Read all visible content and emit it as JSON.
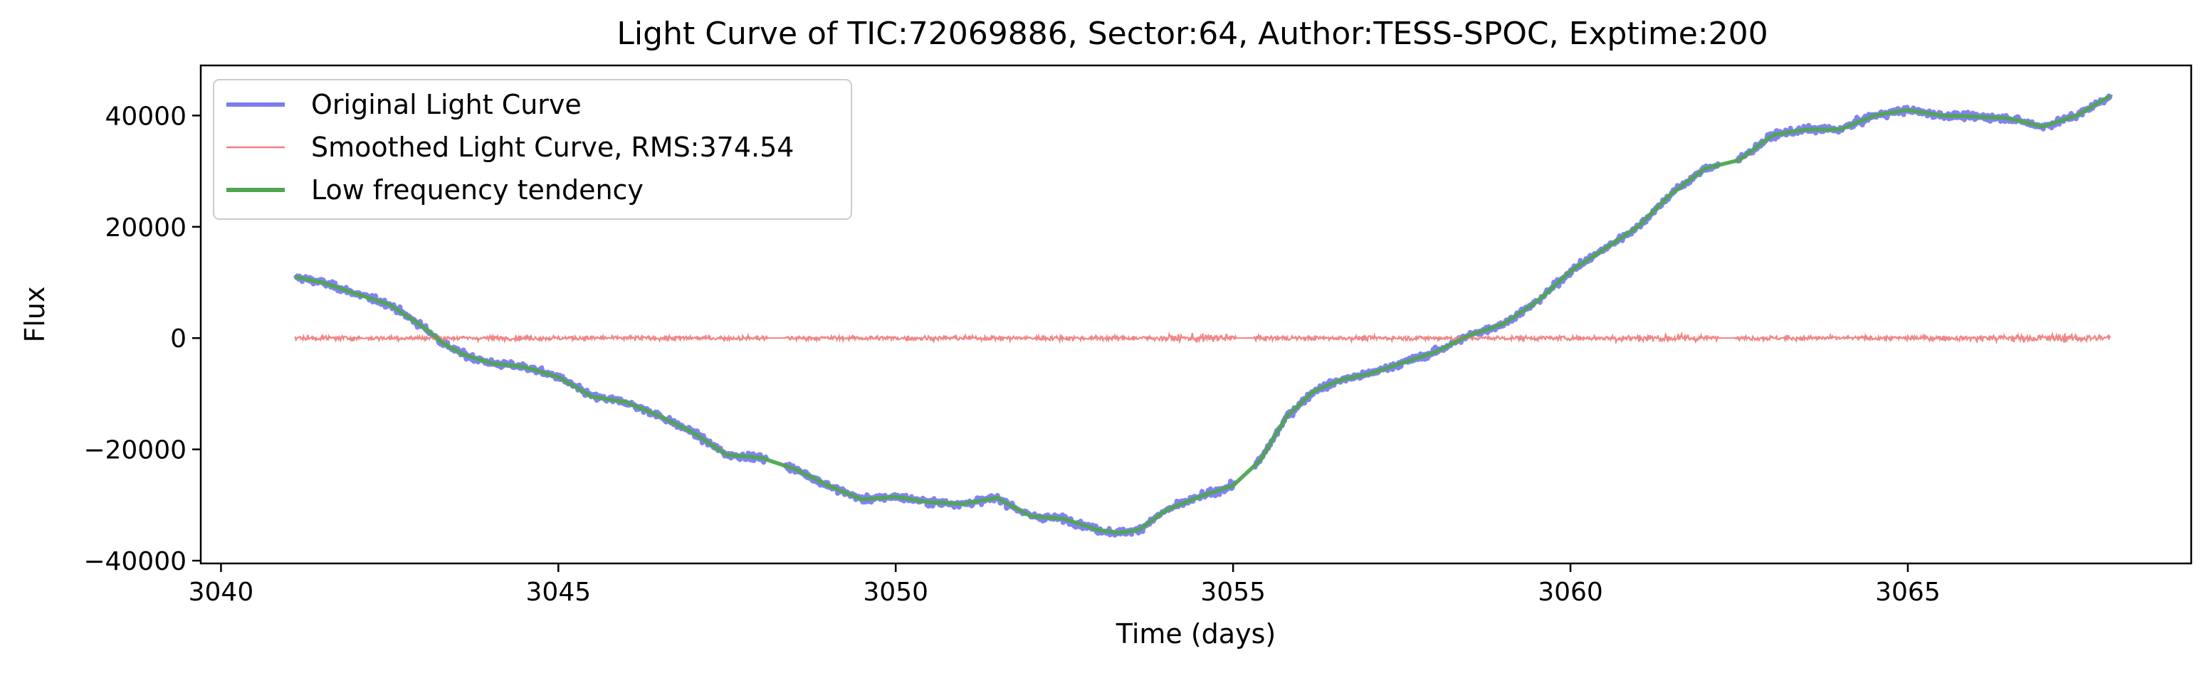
{
  "chart_data": {
    "type": "line",
    "title": "Light Curve of TIC:72069886, Sector:64, Author:TESS-SPOC, Exptime:200",
    "xlabel": "Time (days)",
    "ylabel": "Flux",
    "xlim": [
      3039.7,
      3069.2
    ],
    "ylim": [
      -40500,
      49000
    ],
    "x_ticks": [
      3040,
      3045,
      3050,
      3055,
      3060,
      3065
    ],
    "y_ticks": [
      -40000,
      -20000,
      0,
      20000,
      40000
    ],
    "grid": false,
    "legend_location": "upper-left",
    "gaps": [
      [
        3048.1,
        3048.35
      ],
      [
        3055.05,
        3055.3
      ],
      [
        3062.2,
        3062.45
      ]
    ],
    "series": [
      {
        "name": "Original Light Curve",
        "color": "#7b7bf2",
        "x": [
          3041.1,
          3041.5,
          3042.0,
          3042.5,
          3043.0,
          3043.3,
          3043.6,
          3044.0,
          3044.5,
          3045.0,
          3045.5,
          3046.0,
          3046.5,
          3047.0,
          3047.5,
          3048.0,
          3048.5,
          3049.0,
          3049.5,
          3050.0,
          3050.5,
          3051.0,
          3051.5,
          3052.0,
          3052.5,
          3053.0,
          3053.3,
          3053.6,
          3054.0,
          3054.5,
          3055.0,
          3055.4,
          3055.8,
          3056.2,
          3056.6,
          3057.0,
          3057.5,
          3058.0,
          3058.5,
          3059.0,
          3059.5,
          3060.0,
          3060.5,
          3061.0,
          3061.5,
          3062.0,
          3062.5,
          3063.0,
          3063.5,
          3064.0,
          3064.5,
          3065.0,
          3065.5,
          3066.0,
          3066.5,
          3067.0,
          3067.5,
          3068.0
        ],
        "y": [
          11000,
          10000,
          8000,
          6000,
          2000,
          -1000,
          -3000,
          -4500,
          -5200,
          -7000,
          -10500,
          -11500,
          -14000,
          -17000,
          -21000,
          -21500,
          -23500,
          -26500,
          -29000,
          -28500,
          -29500,
          -29800,
          -28700,
          -32000,
          -32500,
          -34500,
          -35000,
          -34500,
          -31000,
          -28500,
          -26500,
          -22000,
          -14000,
          -9500,
          -7500,
          -6500,
          -4500,
          -2500,
          500,
          2500,
          6500,
          12000,
          16000,
          20000,
          26000,
          30500,
          32000,
          36500,
          37500,
          37500,
          40000,
          41000,
          40000,
          39800,
          39500,
          38000,
          40000,
          43500
        ]
      },
      {
        "name": "Smoothed Light Curve, RMS:374.54",
        "color": "#f08080",
        "x": [
          3041.1,
          3048.1,
          3048.35,
          3055.05,
          3055.3,
          3062.2,
          3062.45,
          3068.0
        ],
        "y": [
          0,
          0,
          0,
          0,
          0,
          0,
          0,
          0
        ],
        "noise_rms": 374.54
      },
      {
        "name": "Low frequency tendency",
        "color": "#4fa64f",
        "x": [
          3041.1,
          3041.5,
          3042.0,
          3042.5,
          3043.0,
          3043.3,
          3043.6,
          3044.0,
          3044.5,
          3045.0,
          3045.5,
          3046.0,
          3046.5,
          3047.0,
          3047.5,
          3048.0,
          3048.5,
          3049.0,
          3049.5,
          3050.0,
          3050.5,
          3051.0,
          3051.5,
          3052.0,
          3052.5,
          3053.0,
          3053.3,
          3053.6,
          3054.0,
          3054.5,
          3055.0,
          3055.4,
          3055.8,
          3056.2,
          3056.6,
          3057.0,
          3057.5,
          3058.0,
          3058.5,
          3059.0,
          3059.5,
          3060.0,
          3060.5,
          3061.0,
          3061.5,
          3062.0,
          3062.5,
          3063.0,
          3063.5,
          3064.0,
          3064.5,
          3065.0,
          3065.5,
          3066.0,
          3066.5,
          3067.0,
          3067.5,
          3068.0
        ],
        "y": [
          11000,
          10000,
          8000,
          6000,
          2000,
          -1000,
          -3000,
          -4500,
          -5200,
          -7000,
          -10500,
          -11500,
          -14000,
          -17000,
          -21000,
          -21500,
          -23500,
          -26500,
          -29000,
          -28500,
          -29500,
          -29800,
          -28700,
          -32000,
          -32500,
          -34500,
          -35000,
          -34500,
          -31000,
          -28500,
          -26500,
          -22000,
          -14000,
          -9500,
          -7500,
          -6500,
          -4500,
          -2500,
          500,
          2500,
          6500,
          12000,
          16000,
          20000,
          26000,
          30500,
          32000,
          36500,
          37500,
          37500,
          40000,
          41000,
          40000,
          39800,
          39500,
          38000,
          40000,
          43500
        ]
      }
    ]
  }
}
